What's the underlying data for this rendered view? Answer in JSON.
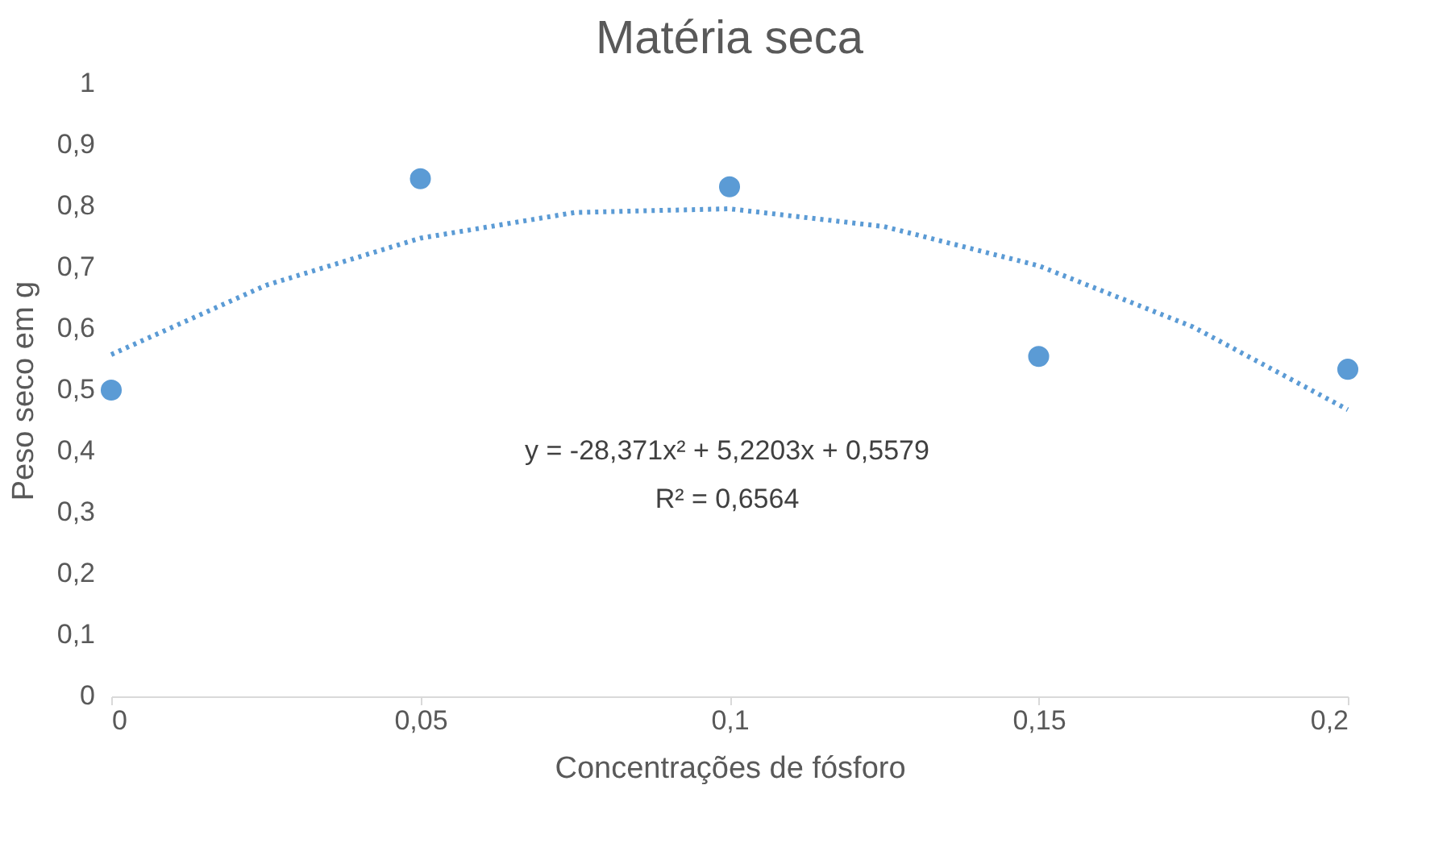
{
  "chart_data": {
    "type": "scatter",
    "title": "Matéria seca",
    "xlabel": "Concentrações de fósforo",
    "ylabel": "Peso seco em g",
    "x": [
      0,
      0.05,
      0.1,
      0.15,
      0.2
    ],
    "series": [
      {
        "color": "#5b9bd5",
        "marker": "circle",
        "values": [
          0.5,
          0.845,
          0.832,
          0.555,
          0.534
        ]
      },
      {
        "type": "line",
        "color": "#5b9bd5",
        "line_style": "dotted",
        "marker": "none",
        "x": [
          0,
          0.025,
          0.05,
          0.075,
          0.1,
          0.125,
          0.15,
          0.175,
          0.2
        ],
        "values": [
          0.558,
          0.671,
          0.748,
          0.79,
          0.796,
          0.767,
          0.703,
          0.603,
          0.468
        ]
      }
    ],
    "xlim": [
      0,
      0.2
    ],
    "ylim": [
      0,
      1
    ],
    "xticks": [
      {
        "value": 0,
        "label": "0"
      },
      {
        "value": 0.05,
        "label": "0,05"
      },
      {
        "value": 0.1,
        "label": "0,1"
      },
      {
        "value": 0.15,
        "label": "0,15"
      },
      {
        "value": 0.2,
        "label": "0,2"
      }
    ],
    "yticks": [
      {
        "value": 0,
        "label": "0"
      },
      {
        "value": 0.1,
        "label": "0,1"
      },
      {
        "value": 0.2,
        "label": "0,2"
      },
      {
        "value": 0.3,
        "label": "0,3"
      },
      {
        "value": 0.4,
        "label": "0,4"
      },
      {
        "value": 0.5,
        "label": "0,5"
      },
      {
        "value": 0.6,
        "label": "0,6"
      },
      {
        "value": 0.7,
        "label": "0,7"
      },
      {
        "value": 0.8,
        "label": "0,8"
      },
      {
        "value": 0.9,
        "label": "0,9"
      },
      {
        "value": 1,
        "label": "1"
      }
    ],
    "annotations": [
      "y = -28,371x² + 5,2203x + 0,5579",
      "R² = 0,6564"
    ],
    "grid": false
  }
}
